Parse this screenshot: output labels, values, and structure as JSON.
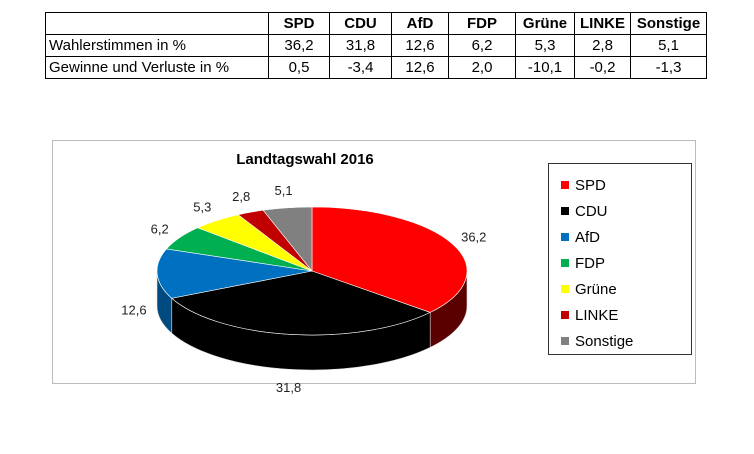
{
  "table": {
    "headers": [
      "SPD",
      "CDU",
      "AfD",
      "FDP",
      "Grüne",
      "LINKE",
      "Sonstige"
    ],
    "rows": [
      {
        "label": "Wahlerstimmen in %",
        "values": [
          "36,2",
          "31,8",
          "12,6",
          "6,2",
          "5,3",
          "2,8",
          "5,1"
        ]
      },
      {
        "label": "Gewinne und Verluste in %",
        "values": [
          "0,5",
          "-3,4",
          "12,6",
          "2,0",
          "-10,1",
          "-0,2",
          "-1,3"
        ]
      }
    ]
  },
  "chart_data": {
    "type": "pie",
    "title": "Landtagswahl 2016",
    "style": "3d",
    "legend_position": "right",
    "categories": [
      "SPD",
      "CDU",
      "AfD",
      "FDP",
      "Grüne",
      "LINKE",
      "Sonstige"
    ],
    "values": [
      36.2,
      31.8,
      12.6,
      6.2,
      5.3,
      2.8,
      5.1
    ],
    "data_labels": [
      "36,2",
      "31,8",
      "12,6",
      "6,2",
      "5,3",
      "2,8",
      "5,1"
    ],
    "colors": [
      "#ff0000",
      "#000000",
      "#0070c0",
      "#00b050",
      "#ffff00",
      "#c00000",
      "#808080"
    ],
    "side_colors": [
      "#5a0000",
      "#000000",
      "#004a80",
      "#007a38",
      "#a0a000",
      "#700000",
      "#505050"
    ]
  }
}
